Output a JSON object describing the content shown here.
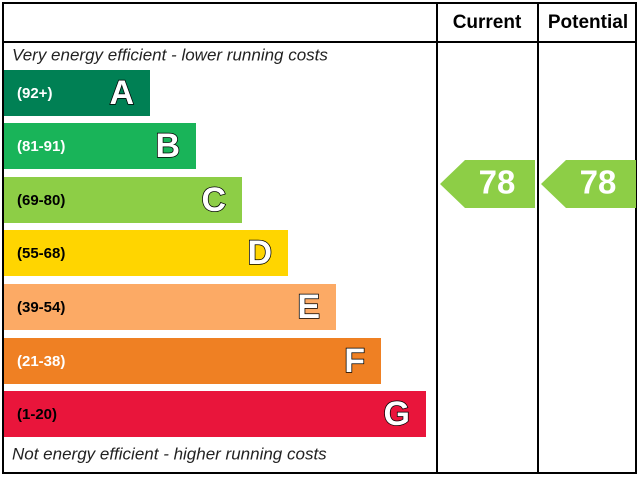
{
  "header": {
    "current": "Current",
    "potential": "Potential"
  },
  "top_note": "Very energy efficient - lower running costs",
  "bands": [
    {
      "range": "(92+)",
      "letter": "A"
    },
    {
      "range": "(81-91)",
      "letter": "B"
    },
    {
      "range": "(69-80)",
      "letter": "C"
    },
    {
      "range": "(55-68)",
      "letter": "D"
    },
    {
      "range": "(39-54)",
      "letter": "E"
    },
    {
      "range": "(21-38)",
      "letter": "F"
    },
    {
      "range": "(1-20)",
      "letter": "G"
    }
  ],
  "bottom_note": "Not energy efficient - higher running costs",
  "current": 78,
  "potential": 78
}
